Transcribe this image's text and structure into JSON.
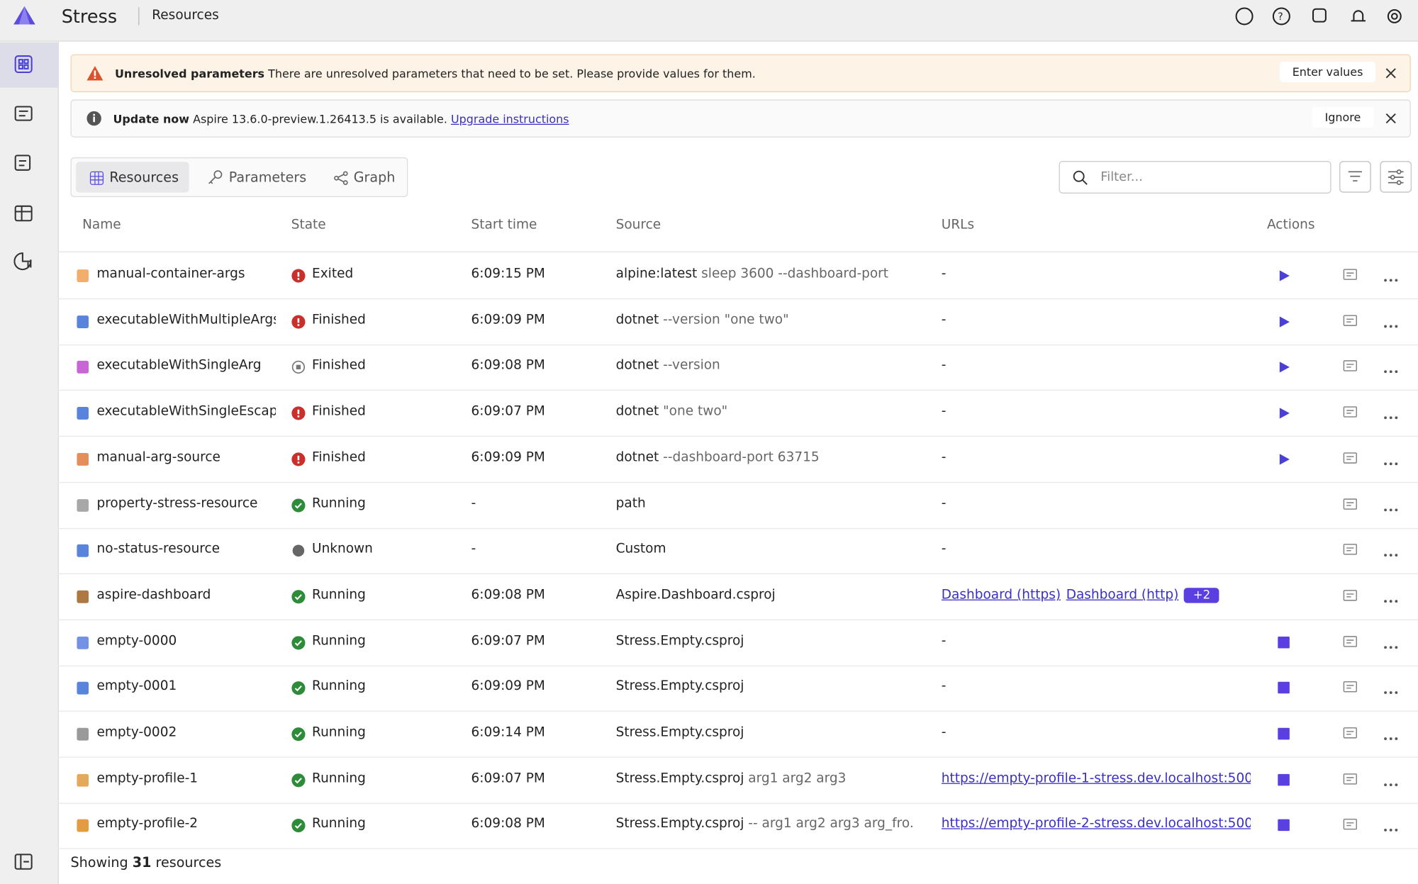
{
  "header": {
    "app": "Stress",
    "page": "Resources"
  },
  "banners": [
    {
      "title": "Unresolved parameters",
      "text": "There are unresolved parameters that need to be set. Please provide values for them.",
      "action": "Enter values"
    },
    {
      "title": "Update now",
      "text": "Aspire 13.6.0-preview.1.26413.5 is available.",
      "link": "Upgrade instructions",
      "action": "Ignore"
    }
  ],
  "tabs": [
    "Resources",
    "Parameters",
    "Graph"
  ],
  "filter_placeholder": "Filter...",
  "table": {
    "columns": [
      "Name",
      "State",
      "Start time",
      "Source",
      "URLs",
      "Actions"
    ],
    "rows": [
      {
        "name": "manual-container-args",
        "state": "Exited",
        "start_time": "6:09:15 PM",
        "source": "alpine:latest",
        "source_args": "sleep 3600 --dashboard-port",
        "urls": [
          "-"
        ]
      },
      {
        "name": "executableWithMultipleArgs",
        "state": "Finished",
        "start_time": "6:09:09 PM",
        "source": "dotnet",
        "source_args": "--version \"one two\"",
        "urls": [
          "-"
        ]
      },
      {
        "name": "executableWithSingleArg",
        "state": "Finished",
        "start_time": "6:09:08 PM",
        "source": "dotnet",
        "source_args": "--version",
        "urls": [
          "-"
        ]
      },
      {
        "name": "executableWithSingleEscap",
        "state": "Finished",
        "start_time": "6:09:07 PM",
        "source": "dotnet",
        "source_args": "\"one two\"",
        "urls": [
          "-"
        ]
      },
      {
        "name": "manual-arg-source",
        "state": "Finished",
        "start_time": "6:09:09 PM",
        "source": "dotnet",
        "source_args": "--dashboard-port 63715",
        "urls": [
          "-"
        ]
      },
      {
        "name": "property-stress-resource",
        "state": "Running",
        "start_time": "-",
        "source": "path",
        "urls": [
          "-"
        ]
      },
      {
        "name": "no-status-resource",
        "state": "Unknown",
        "start_time": "-",
        "source": "Custom",
        "urls": [
          "-"
        ]
      },
      {
        "name": "aspire-dashboard",
        "state": "Running",
        "start_time": "6:09:08 PM",
        "source": "Aspire.Dashboard.csproj",
        "urls": [
          "Dashboard (https)",
          "Dashboard (http)"
        ],
        "url_more": "+2"
      },
      {
        "name": "empty-0000",
        "state": "Running",
        "start_time": "6:09:07 PM",
        "source": "Stress.Empty.csproj",
        "urls": [
          "-"
        ]
      },
      {
        "name": "empty-0001",
        "state": "Running",
        "start_time": "6:09:09 PM",
        "source": "Stress.Empty.csproj",
        "urls": [
          "-"
        ]
      },
      {
        "name": "empty-0002",
        "state": "Running",
        "start_time": "6:09:14 PM",
        "source": "Stress.Empty.csproj",
        "urls": [
          "-"
        ]
      },
      {
        "name": "empty-profile-1",
        "state": "Running",
        "start_time": "6:09:07 PM",
        "source": "Stress.Empty.csproj",
        "source_args": "arg1 arg2 arg3",
        "urls": [
          "https://empty-profile-1-stress.dev.localhost:500"
        ]
      },
      {
        "name": "empty-profile-2",
        "state": "Running",
        "start_time": "6:09:08 PM",
        "source": "Stress.Empty.csproj",
        "source_args": "-- arg1 arg2 arg3 arg_fro...",
        "urls": [
          "https://empty-profile-2-stress.dev.localhost:500"
        ]
      }
    ]
  },
  "footer": {
    "prefix": "Showing",
    "count": 31,
    "suffix": "resources"
  }
}
